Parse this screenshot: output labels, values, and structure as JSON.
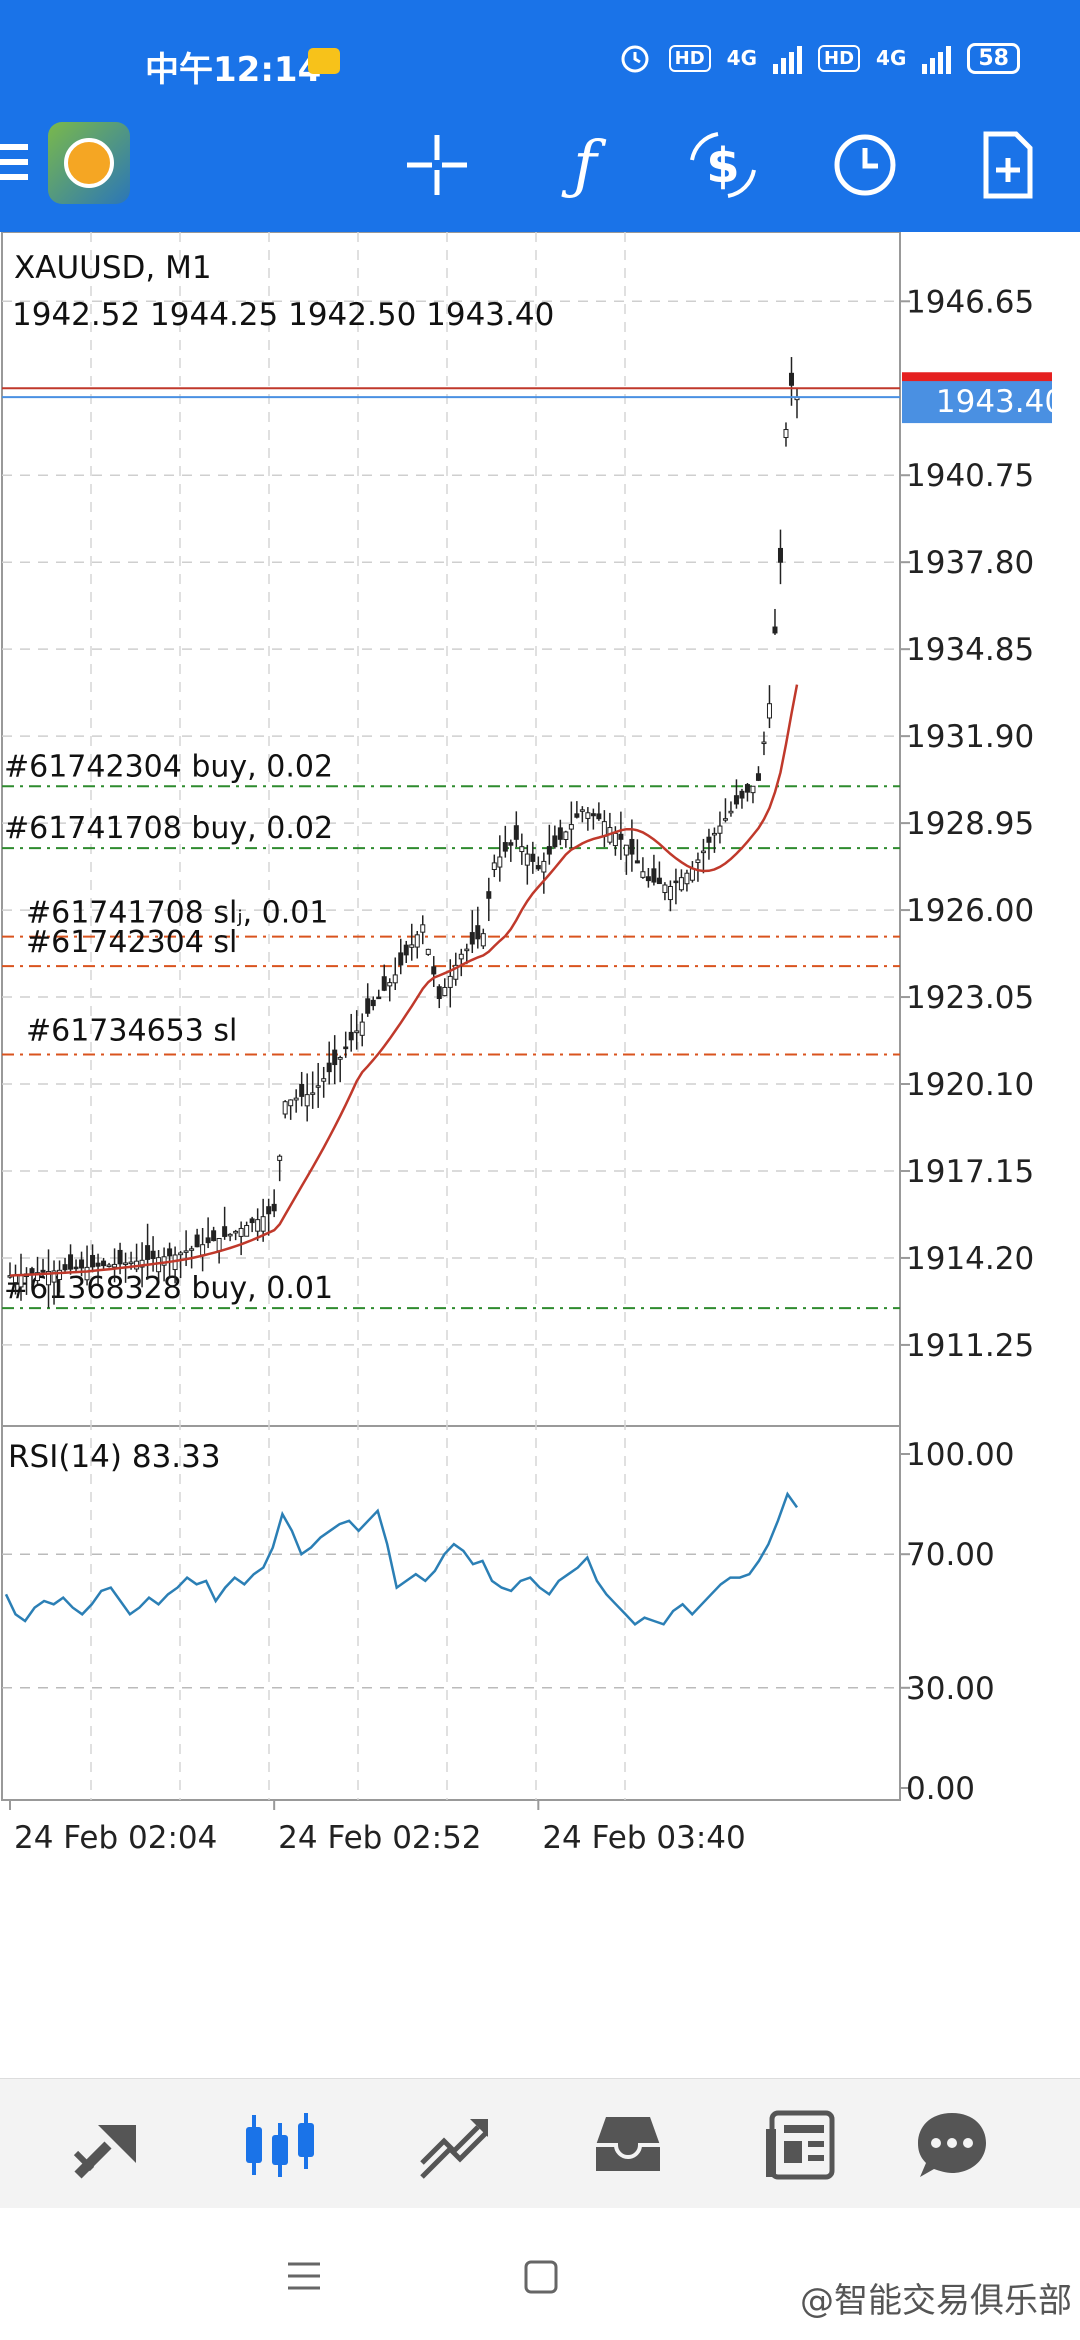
{
  "status_bar": {
    "time": "中午12:14",
    "net1": "4G",
    "net2": "4G",
    "battery": "58",
    "hd": "HD"
  },
  "toolbar": {
    "crosshair_icon": "crosshair-icon",
    "function_icon": "ƒ",
    "trade_icon": "$"
  },
  "chart_data": [
    {
      "type": "candlestick",
      "symbol_label": "XAUUSD, M1",
      "ohlc_label": "1942.52 1944.25 1942.50 1943.40",
      "ylim": [
        1908.5,
        1949.0
      ],
      "y_ticks": [
        "1946.65",
        "1943.40",
        "1940.75",
        "1937.80",
        "1934.85",
        "1931.90",
        "1928.95",
        "1926.00",
        "1923.05",
        "1920.10",
        "1917.15",
        "1914.20",
        "1911.25"
      ],
      "current_price": "1943.40",
      "current_price_value": 1943.4,
      "ask_value": 1943.7,
      "x_tick_labels": [
        "24 Feb 02:04",
        "24 Feb 02:52",
        "24 Feb 03:40"
      ],
      "x_tick_index": [
        0,
        48,
        96
      ],
      "bars_count": 145,
      "orders": [
        {
          "label": "#61742304 buy, 0.02",
          "price": 1930.2,
          "kind": "buy"
        },
        {
          "label": "#61741708 buy, 0.02",
          "price": 1928.1,
          "kind": "buy"
        },
        {
          "label": "#61741708 slⱼ, 0.01",
          "price": 1925.1,
          "kind": "sl"
        },
        {
          "label": "#61742304 sl",
          "price": 1924.1,
          "kind": "sl"
        },
        {
          "label": "#61734653 sl",
          "price": 1921.1,
          "kind": "sl"
        },
        {
          "label": "#61368328 buy, 0.01",
          "price": 1912.5,
          "kind": "buy"
        }
      ],
      "ma_color": "#c0392b",
      "price_path": [
        [
          0,
          1913.6
        ],
        [
          10,
          1913.8
        ],
        [
          20,
          1914.0
        ],
        [
          30,
          1914.3
        ],
        [
          40,
          1915.0
        ],
        [
          48,
          1915.8
        ],
        [
          50,
          1919.5
        ],
        [
          55,
          1919.8
        ],
        [
          60,
          1921.0
        ],
        [
          65,
          1922.5
        ],
        [
          70,
          1923.8
        ],
        [
          75,
          1925.5
        ],
        [
          78,
          1923.0
        ],
        [
          82,
          1924.5
        ],
        [
          86,
          1925.2
        ],
        [
          88,
          1927.6
        ],
        [
          92,
          1928.4
        ],
        [
          96,
          1927.4
        ],
        [
          100,
          1928.4
        ],
        [
          104,
          1929.4
        ],
        [
          108,
          1929.0
        ],
        [
          112,
          1928.2
        ],
        [
          116,
          1927.0
        ],
        [
          120,
          1926.8
        ],
        [
          124,
          1927.4
        ],
        [
          128,
          1928.6
        ],
        [
          132,
          1929.6
        ],
        [
          136,
          1930.4
        ],
        [
          138,
          1933.0
        ],
        [
          140,
          1937.8
        ],
        [
          141,
          1942.3
        ],
        [
          142,
          1943.8
        ],
        [
          143,
          1943.4
        ]
      ],
      "candle_color": "#222222"
    },
    {
      "type": "line",
      "indicator_label": "RSI(14) 83.33",
      "ylim": [
        0,
        100
      ],
      "y_ticks": [
        "100.00",
        "70.00",
        "30.00",
        "0.00"
      ],
      "series_color": "#2b7fb5",
      "values": [
        58,
        52,
        50,
        54,
        56,
        55,
        57,
        54,
        52,
        55,
        59,
        60,
        56,
        52,
        54,
        57,
        55,
        58,
        60,
        63,
        61,
        62,
        56,
        60,
        63,
        61,
        64,
        66,
        72,
        82,
        77,
        70,
        72,
        75,
        77,
        79,
        80,
        77,
        80,
        83,
        73,
        60,
        62,
        64,
        62,
        65,
        70,
        73,
        71,
        67,
        68,
        62,
        60,
        59,
        62,
        63,
        60,
        58,
        62,
        64,
        66,
        69,
        62,
        58,
        55,
        52,
        49,
        51,
        50,
        49,
        53,
        55,
        52,
        55,
        58,
        61,
        63,
        63,
        64,
        68,
        73,
        80,
        88,
        84
      ]
    }
  ],
  "watermark": "@智能交易俱乐部"
}
